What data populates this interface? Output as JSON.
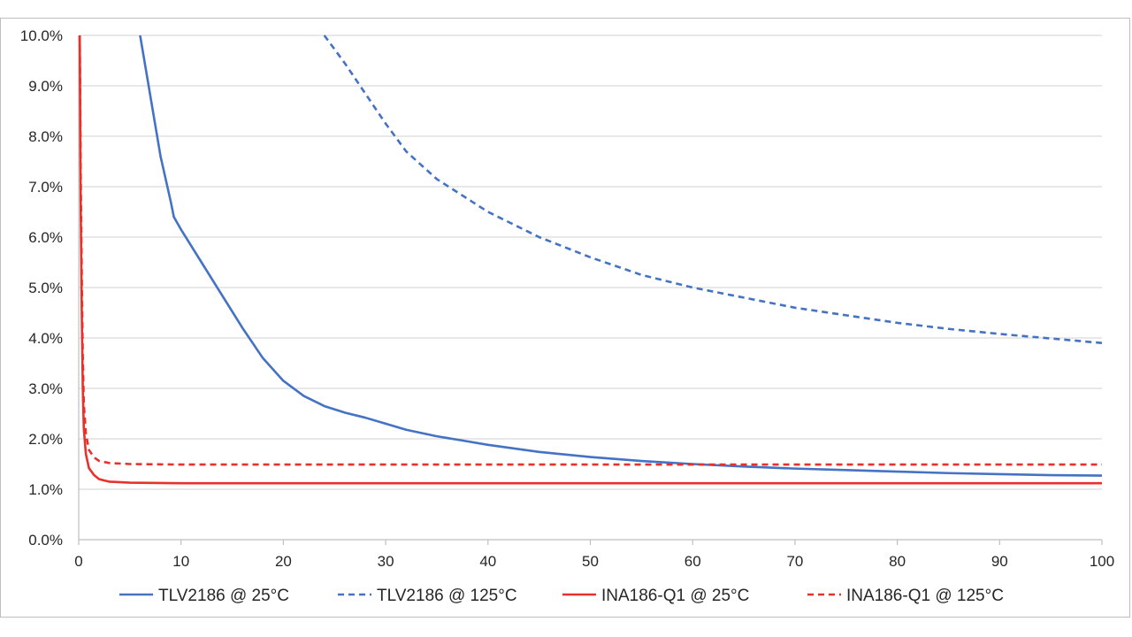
{
  "chart_data": {
    "type": "line",
    "title": "",
    "xlabel": "",
    "ylabel": "",
    "xlim": [
      0,
      100
    ],
    "ylim": [
      0,
      10
    ],
    "x_ticks": [
      0,
      10,
      20,
      30,
      40,
      50,
      60,
      70,
      80,
      90,
      100
    ],
    "x_tick_labels": [
      "0",
      "10",
      "20",
      "30",
      "40",
      "50",
      "60",
      "70",
      "80",
      "90",
      "100"
    ],
    "y_ticks": [
      0,
      1,
      2,
      3,
      4,
      5,
      6,
      7,
      8,
      9,
      10
    ],
    "y_tick_labels": [
      "0.0%",
      "1.0%",
      "2.0%",
      "3.0%",
      "4.0%",
      "5.0%",
      "6.0%",
      "7.0%",
      "8.0%",
      "9.0%",
      "10.0%"
    ],
    "grid": "horizontal",
    "legend_position": "bottom",
    "series": [
      {
        "name": "TLV2186 @ 25°C",
        "color": "#4472c4",
        "dash": "solid",
        "points": [
          [
            6,
            10
          ],
          [
            7,
            8.8
          ],
          [
            8,
            7.6
          ],
          [
            9,
            6.7
          ],
          [
            9.3,
            6.4
          ],
          [
            10,
            6.15
          ],
          [
            12,
            5.5
          ],
          [
            14,
            4.85
          ],
          [
            16,
            4.2
          ],
          [
            18,
            3.6
          ],
          [
            20,
            3.15
          ],
          [
            22,
            2.85
          ],
          [
            24,
            2.65
          ],
          [
            26,
            2.52
          ],
          [
            28,
            2.42
          ],
          [
            30,
            2.3
          ],
          [
            32,
            2.18
          ],
          [
            35,
            2.05
          ],
          [
            38,
            1.95
          ],
          [
            40,
            1.88
          ],
          [
            45,
            1.74
          ],
          [
            50,
            1.64
          ],
          [
            55,
            1.56
          ],
          [
            60,
            1.5
          ],
          [
            65,
            1.45
          ],
          [
            70,
            1.41
          ],
          [
            75,
            1.38
          ],
          [
            80,
            1.35
          ],
          [
            85,
            1.32
          ],
          [
            90,
            1.3
          ],
          [
            95,
            1.28
          ],
          [
            100,
            1.27
          ]
        ]
      },
      {
        "name": "TLV2186 @ 125°C",
        "color": "#4472c4",
        "dash": "dashed",
        "points": [
          [
            24,
            10
          ],
          [
            26,
            9.45
          ],
          [
            28,
            8.85
          ],
          [
            30,
            8.25
          ],
          [
            32,
            7.7
          ],
          [
            35,
            7.15
          ],
          [
            40,
            6.5
          ],
          [
            45,
            6.0
          ],
          [
            50,
            5.6
          ],
          [
            55,
            5.25
          ],
          [
            60,
            5.0
          ],
          [
            65,
            4.8
          ],
          [
            70,
            4.6
          ],
          [
            75,
            4.45
          ],
          [
            80,
            4.3
          ],
          [
            85,
            4.18
          ],
          [
            90,
            4.08
          ],
          [
            95,
            3.99
          ],
          [
            100,
            3.9
          ]
        ]
      },
      {
        "name": "INA186-Q1 @ 25°C",
        "color": "#e8312a",
        "dash": "solid",
        "points": [
          [
            0.1,
            10
          ],
          [
            0.15,
            8.2
          ],
          [
            0.2,
            6.5
          ],
          [
            0.3,
            4.5
          ],
          [
            0.4,
            3.0
          ],
          [
            0.5,
            2.2
          ],
          [
            0.7,
            1.7
          ],
          [
            1,
            1.42
          ],
          [
            1.5,
            1.28
          ],
          [
            2,
            1.2
          ],
          [
            3,
            1.15
          ],
          [
            5,
            1.13
          ],
          [
            10,
            1.12
          ],
          [
            20,
            1.12
          ],
          [
            40,
            1.12
          ],
          [
            60,
            1.12
          ],
          [
            80,
            1.12
          ],
          [
            100,
            1.12
          ]
        ]
      },
      {
        "name": "INA186-Q1 @ 125°C",
        "color": "#e8312a",
        "dash": "dashed",
        "points": [
          [
            0.1,
            10
          ],
          [
            0.15,
            8.8
          ],
          [
            0.2,
            7.2
          ],
          [
            0.3,
            5.2
          ],
          [
            0.4,
            3.6
          ],
          [
            0.5,
            2.7
          ],
          [
            0.7,
            2.1
          ],
          [
            1,
            1.78
          ],
          [
            1.5,
            1.63
          ],
          [
            2,
            1.56
          ],
          [
            3,
            1.52
          ],
          [
            5,
            1.5
          ],
          [
            10,
            1.49
          ],
          [
            20,
            1.49
          ],
          [
            40,
            1.49
          ],
          [
            60,
            1.49
          ],
          [
            80,
            1.49
          ],
          [
            100,
            1.49
          ]
        ]
      }
    ]
  }
}
